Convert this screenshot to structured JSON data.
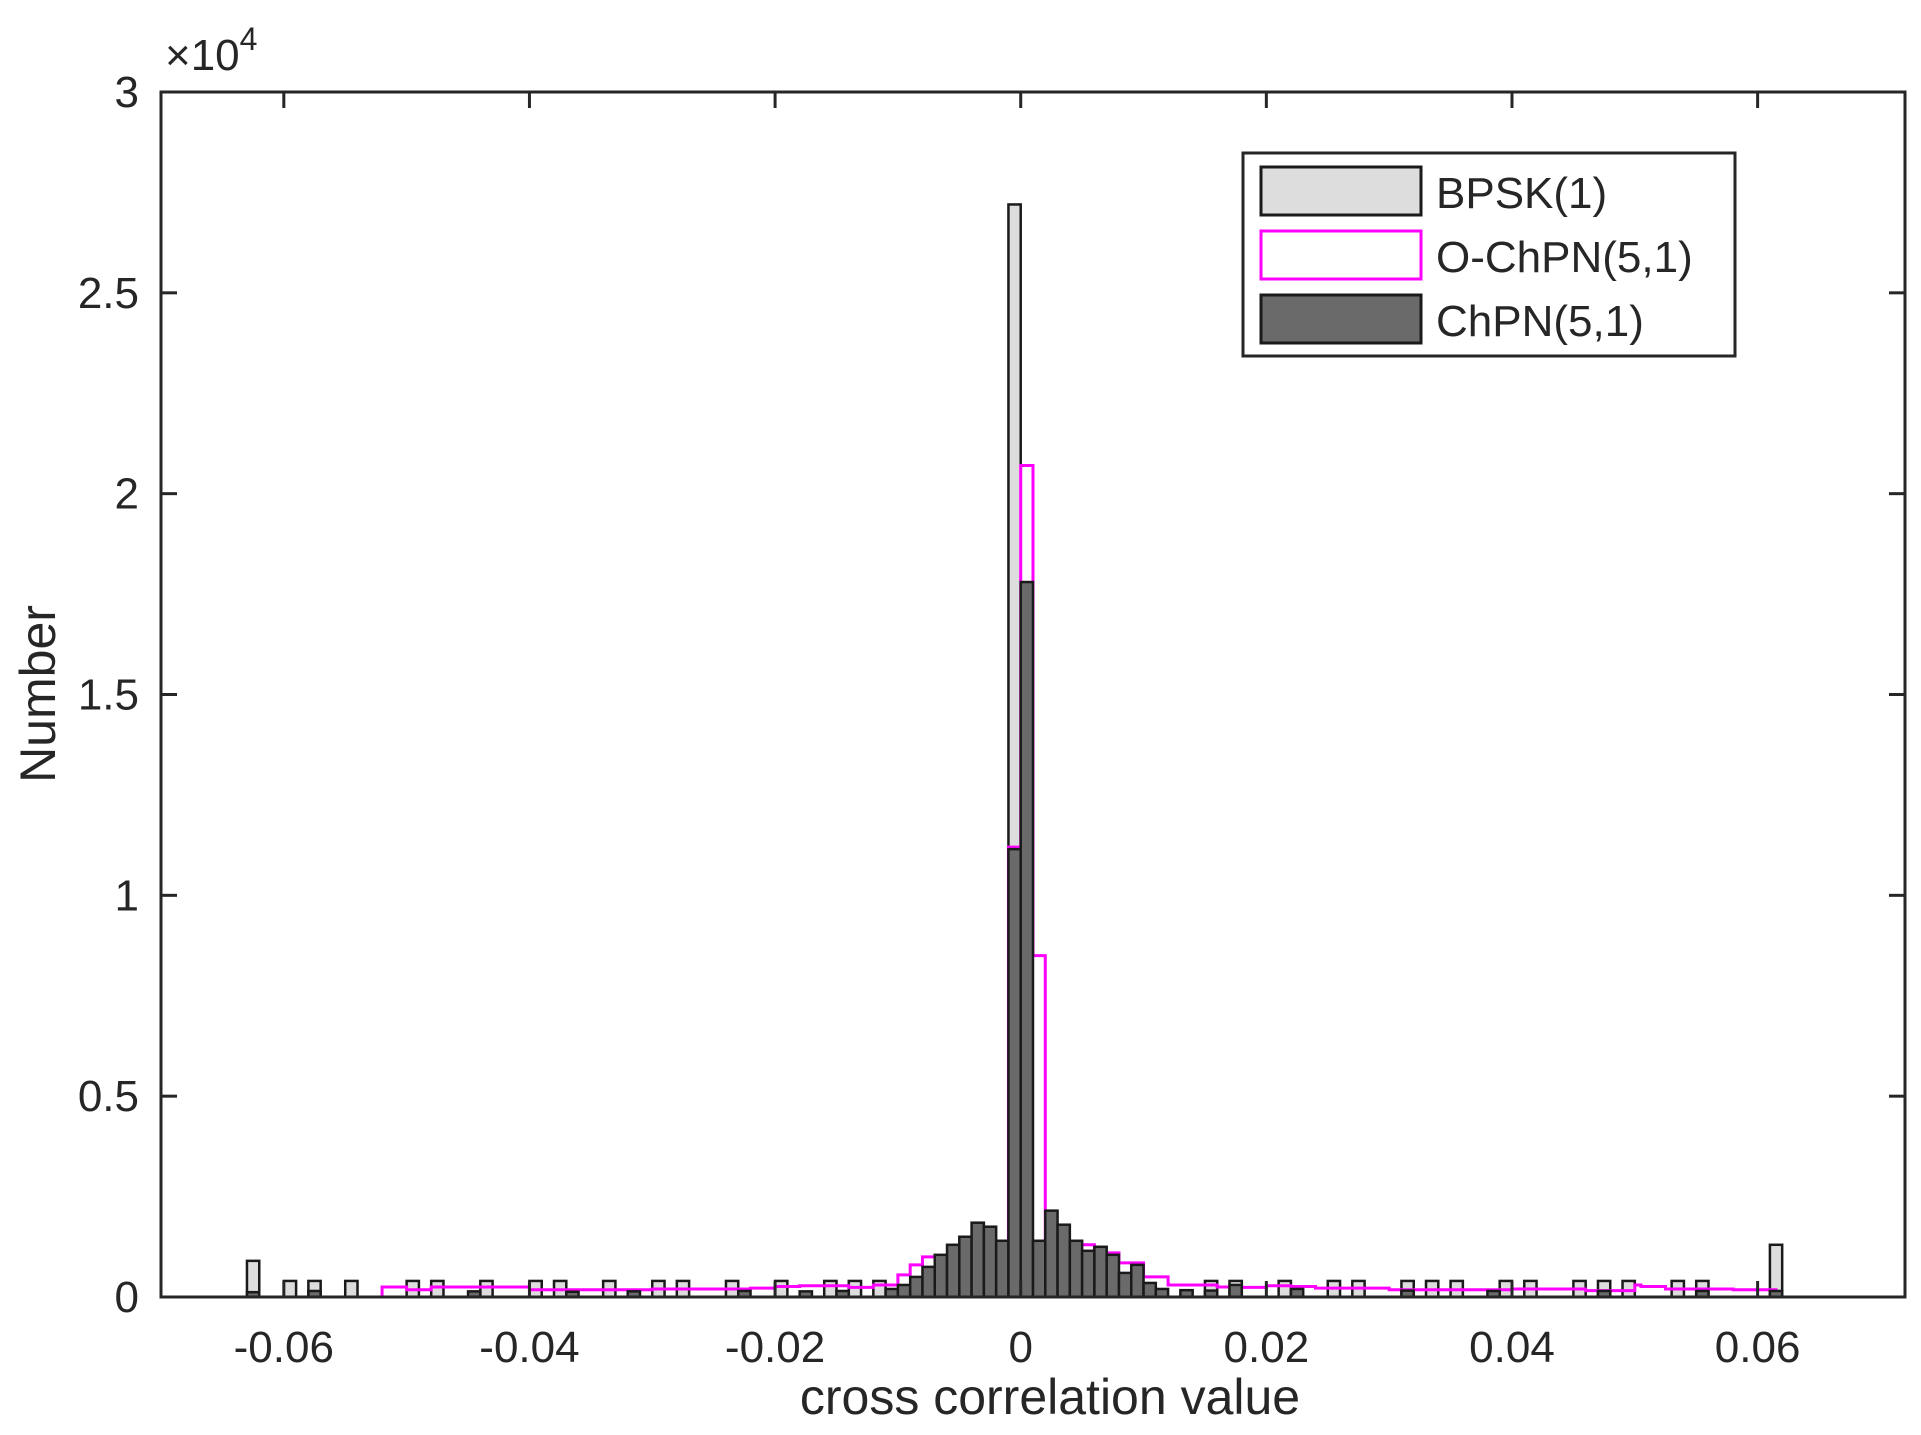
{
  "chart_data": {
    "type": "bar",
    "title": "",
    "xlabel": "cross correlation value",
    "ylabel": "Number",
    "y_exponent_label": "×10",
    "y_exponent_power": "4",
    "xlim": [
      -0.07,
      0.072
    ],
    "ylim": [
      0,
      30000
    ],
    "bin_width": 0.001,
    "grid": false,
    "legend_position": "top-right",
    "x_ticks": [
      -0.06,
      -0.04,
      -0.02,
      0,
      0.02,
      0.04,
      0.06
    ],
    "x_tick_labels": [
      "-0.06",
      "-0.04",
      "-0.02",
      "0",
      "0.02",
      "0.04",
      "0.06"
    ],
    "y_ticks": [
      0,
      5000,
      10000,
      15000,
      20000,
      25000,
      30000
    ],
    "y_tick_labels": [
      "0",
      "0.5",
      "1",
      "1.5",
      "2",
      "2.5",
      "3"
    ],
    "series": [
      {
        "name": "BPSK(1)",
        "style": "filled",
        "color": "#dddddd",
        "stroke": "#1a1a1a",
        "bins": [
          [
            -0.0625,
            900
          ],
          [
            -0.0595,
            400
          ],
          [
            -0.0575,
            400
          ],
          [
            -0.0545,
            400
          ],
          [
            -0.0495,
            400
          ],
          [
            -0.0475,
            400
          ],
          [
            -0.0435,
            400
          ],
          [
            -0.0395,
            400
          ],
          [
            -0.0375,
            400
          ],
          [
            -0.0335,
            400
          ],
          [
            -0.0295,
            400
          ],
          [
            -0.0275,
            400
          ],
          [
            -0.0235,
            400
          ],
          [
            -0.0195,
            400
          ],
          [
            -0.0155,
            400
          ],
          [
            -0.0135,
            400
          ],
          [
            -0.0115,
            400
          ],
          [
            -0.0005,
            27200
          ],
          [
            0.0155,
            400
          ],
          [
            0.0175,
            400
          ],
          [
            0.0215,
            400
          ],
          [
            0.0255,
            400
          ],
          [
            0.0275,
            400
          ],
          [
            0.0315,
            400
          ],
          [
            0.0335,
            400
          ],
          [
            0.0355,
            400
          ],
          [
            0.0395,
            400
          ],
          [
            0.0415,
            400
          ],
          [
            0.0455,
            400
          ],
          [
            0.0475,
            400
          ],
          [
            0.0495,
            400
          ],
          [
            0.0535,
            400
          ],
          [
            0.0555,
            400
          ],
          [
            0.0615,
            1300
          ]
        ]
      },
      {
        "name": "O-ChPN(5,1)",
        "style": "outline",
        "color": "#ff00ff",
        "points": [
          [
            -0.0625,
            0
          ],
          [
            -0.052,
            250
          ],
          [
            -0.05,
            180
          ],
          [
            -0.048,
            250
          ],
          [
            -0.04,
            180
          ],
          [
            -0.03,
            200
          ],
          [
            -0.022,
            220
          ],
          [
            -0.02,
            260
          ],
          [
            -0.018,
            280
          ],
          [
            -0.014,
            240
          ],
          [
            -0.012,
            300
          ],
          [
            -0.01,
            550
          ],
          [
            -0.009,
            800
          ],
          [
            -0.008,
            1000
          ],
          [
            -0.006,
            1050
          ],
          [
            -0.004,
            1150
          ],
          [
            -0.002,
            1250
          ],
          [
            -0.001,
            11200
          ],
          [
            0.0,
            20700
          ],
          [
            0.001,
            8500
          ],
          [
            0.002,
            1300
          ],
          [
            0.004,
            1300
          ],
          [
            0.006,
            1100
          ],
          [
            0.008,
            850
          ],
          [
            0.01,
            500
          ],
          [
            0.012,
            300
          ],
          [
            0.016,
            250
          ],
          [
            0.018,
            240
          ],
          [
            0.02,
            280
          ],
          [
            0.022,
            260
          ],
          [
            0.024,
            220
          ],
          [
            0.03,
            180
          ],
          [
            0.04,
            200
          ],
          [
            0.046,
            160
          ],
          [
            0.05,
            300
          ],
          [
            0.0505,
            260
          ],
          [
            0.0525,
            200
          ],
          [
            0.058,
            180
          ],
          [
            0.0615,
            0
          ]
        ]
      },
      {
        "name": "ChPN(5,1)",
        "style": "filled",
        "color": "#6a6a6a",
        "stroke": "#1a1a1a",
        "bins": [
          [
            -0.0625,
            120
          ],
          [
            -0.0575,
            150
          ],
          [
            -0.0445,
            140
          ],
          [
            -0.0365,
            130
          ],
          [
            -0.0315,
            140
          ],
          [
            -0.0225,
            150
          ],
          [
            -0.0175,
            140
          ],
          [
            -0.0145,
            150
          ],
          [
            -0.0105,
            200
          ],
          [
            -0.0095,
            300
          ],
          [
            -0.0085,
            500
          ],
          [
            -0.0075,
            750
          ],
          [
            -0.0065,
            1050
          ],
          [
            -0.0055,
            1300
          ],
          [
            -0.0045,
            1500
          ],
          [
            -0.0035,
            1850
          ],
          [
            -0.0025,
            1750
          ],
          [
            -0.0015,
            1400
          ],
          [
            -0.0005,
            11150
          ],
          [
            0.0005,
            17800
          ],
          [
            0.0015,
            1400
          ],
          [
            0.0025,
            2150
          ],
          [
            0.0035,
            1800
          ],
          [
            0.0045,
            1400
          ],
          [
            0.0055,
            1150
          ],
          [
            0.0065,
            1250
          ],
          [
            0.0075,
            1050
          ],
          [
            0.0085,
            600
          ],
          [
            0.0095,
            800
          ],
          [
            0.0105,
            350
          ],
          [
            0.0115,
            200
          ],
          [
            0.0135,
            170
          ],
          [
            0.0155,
            160
          ],
          [
            0.0175,
            300
          ],
          [
            0.0225,
            200
          ],
          [
            0.0315,
            160
          ],
          [
            0.0385,
            150
          ],
          [
            0.0475,
            150
          ],
          [
            0.0555,
            150
          ],
          [
            0.0615,
            150
          ]
        ]
      }
    ]
  }
}
